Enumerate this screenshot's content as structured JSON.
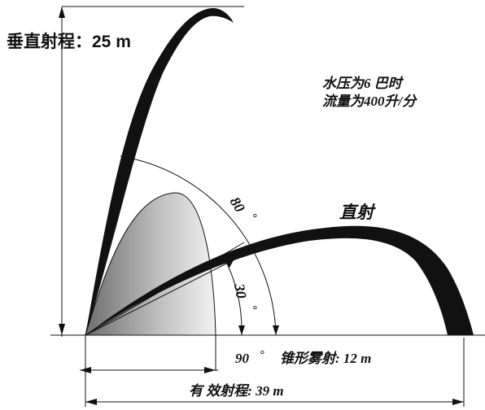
{
  "labels": {
    "vertical_range": "垂直射程：25 m",
    "pressure": "水压为6 巴时",
    "flow": "流量为400升/分",
    "straight_jet": "直射",
    "angle_80": "80",
    "angle_30": "30",
    "angle_90": "90",
    "degree": "°",
    "cone_spray": "锥形雾射: 12 m",
    "effective_range": "有 效射程: 39 m"
  },
  "colors": {
    "ink": "#111111",
    "cone_dark": "#6e6e6e",
    "cone_light": "#f2f2f2"
  }
}
